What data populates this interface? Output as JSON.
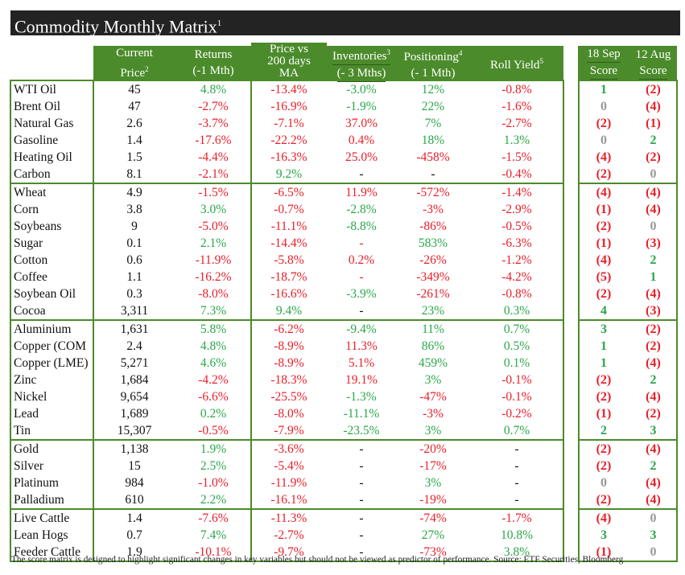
{
  "title": "Commodity Monthly Matrix",
  "title_sup": "1",
  "headers": {
    "price": [
      "Current",
      "Price",
      "2"
    ],
    "returns": [
      "Returns",
      "(-1 Mth)"
    ],
    "ma": [
      "Price vs",
      "200 days",
      "MA"
    ],
    "inv": [
      "Inventories",
      "3",
      "(- 3 Mths)"
    ],
    "pos": [
      "Positioning",
      "4",
      "(- 1 Mth)"
    ],
    "roll": [
      "Roll Yield",
      "5"
    ],
    "s18": [
      "18 Sep",
      "Score"
    ],
    "s12": [
      "12 Aug",
      "Score"
    ]
  },
  "colors": {
    "green": "#2aa84a",
    "red": "#e8202a",
    "header": "#4b8b2b",
    "title_bg": "#232323"
  },
  "groups": [
    {
      "name": "energy",
      "rows": [
        [
          "WTI Oil",
          "45",
          "4.8%|g",
          "-13.4%|r",
          "-3.0%|g",
          "12%|g",
          "-0.8%|r",
          "1|g",
          "(2)|r"
        ],
        [
          "Brent Oil",
          "47",
          "-2.7%|r",
          "-16.9%|r",
          "-1.9%|g",
          "22%|g",
          "-1.6%|r",
          "0|z",
          "(4)|r"
        ],
        [
          "Natural Gas",
          "2.6",
          "-3.7%|r",
          "-7.1%|r",
          "37.0%|r",
          "7%|g",
          "-2.7%|r",
          "(2)|r",
          "(1)|r"
        ],
        [
          "Gasoline",
          "1.4",
          "-17.6%|r",
          "-22.2%|r",
          "0.4%|r",
          "18%|g",
          "1.3%|g",
          "0|z",
          "2|g"
        ],
        [
          "Heating Oil",
          "1.5",
          "-4.4%|r",
          "-16.3%|r",
          "25.0%|r",
          "-458%|r",
          "-1.5%|r",
          "(4)|r",
          "(2)|r"
        ],
        [
          "Carbon",
          "8.1",
          "-2.1%|r",
          "9.2%|g",
          "-|k",
          "-|k",
          "-0.4%|r",
          "(2)|r",
          "0|z"
        ]
      ]
    },
    {
      "name": "agriculture",
      "rows": [
        [
          "Wheat",
          "4.9",
          "-1.5%|r",
          "-6.5%|r",
          "11.9%|r",
          "-572%|r",
          "-1.4%|r",
          "(4)|r",
          "(4)|r"
        ],
        [
          "Corn",
          "3.8",
          "3.0%|g",
          "-0.7%|r",
          "-2.8%|g",
          "-3%|r",
          "-2.9%|r",
          "(1)|r",
          "(4)|r"
        ],
        [
          "Soybeans",
          "9",
          "-5.0%|r",
          "-11.1%|r",
          "-8.8%|g",
          "-86%|r",
          "-0.5%|r",
          "(2)|r",
          "0|z"
        ],
        [
          "Sugar",
          "0.1",
          "2.1%|g",
          "-14.4%|r",
          "-|r",
          "583%|g",
          "-6.3%|r",
          "(1)|r",
          "(3)|r"
        ],
        [
          "Cotton",
          "0.6",
          "-11.9%|r",
          "-5.8%|r",
          "0.2%|r",
          "-26%|r",
          "-1.2%|r",
          "(4)|r",
          "2|g"
        ],
        [
          "Coffee",
          "1.1",
          "-16.2%|r",
          "-18.7%|r",
          "-|r",
          "-349%|r",
          "-4.2%|r",
          "(5)|r",
          "1|g"
        ],
        [
          "Soybean Oil",
          "0.3",
          "-8.0%|r",
          "-16.6%|r",
          "-3.9%|g",
          "-261%|r",
          "-0.8%|r",
          "(2)|r",
          "(4)|r"
        ],
        [
          "Cocoa",
          "3,311",
          "7.3%|g",
          "9.4%|g",
          "-|k",
          "23%|g",
          "0.3%|g",
          "4|g",
          "(3)|r"
        ]
      ]
    },
    {
      "name": "industrial-metals",
      "rows": [
        [
          "Aluminium",
          "1,631",
          "5.8%|g",
          "-6.2%|r",
          "-9.4%|g",
          "11%|g",
          "0.7%|g",
          "3|g",
          "(2)|r"
        ],
        [
          "Copper (COM",
          "2.4",
          "4.8%|g",
          "-8.9%|r",
          "11.3%|r",
          "86%|g",
          "0.5%|g",
          "1|g",
          "(2)|r"
        ],
        [
          "Copper (LME)",
          "5,271",
          "4.6%|g",
          "-8.9%|r",
          "5.1%|r",
          "459%|g",
          "0.1%|g",
          "1|g",
          "(4)|r"
        ],
        [
          "Zinc",
          "1,684",
          "-4.2%|r",
          "-18.3%|r",
          "19.1%|r",
          "3%|g",
          "-0.1%|r",
          "(2)|r",
          "2|g"
        ],
        [
          "Nickel",
          "9,654",
          "-6.6%|r",
          "-25.5%|r",
          "-1.3%|g",
          "-47%|r",
          "-0.1%|r",
          "(2)|r",
          "(4)|r"
        ],
        [
          "Lead",
          "1,689",
          "0.2%|g",
          "-8.0%|r",
          "-11.1%|g",
          "-3%|r",
          "-0.2%|r",
          "(1)|r",
          "(2)|r"
        ],
        [
          "Tin",
          "15,307",
          "-0.5%|r",
          "-7.9%|r",
          "-23.5%|g",
          "3%|g",
          "0.7%|g",
          "2|g",
          "3|g"
        ]
      ]
    },
    {
      "name": "precious-metals",
      "rows": [
        [
          "Gold",
          "1,138",
          "1.9%|g",
          "-3.6%|r",
          "-|k",
          "-20%|r",
          "-|k",
          "(2)|r",
          "(4)|r"
        ],
        [
          "Silver",
          "15",
          "2.5%|g",
          "-5.4%|r",
          "-|k",
          "-17%|r",
          "-|k",
          "(2)|r",
          "2|g"
        ],
        [
          "Platinum",
          "984",
          "-1.0%|r",
          "-11.9%|r",
          "-|k",
          "3%|g",
          "-|k",
          "0|z",
          "(4)|r"
        ],
        [
          "Palladium",
          "610",
          "2.2%|g",
          "-16.1%|r",
          "-|k",
          "-19%|r",
          "-|k",
          "(2)|r",
          "(4)|r"
        ]
      ]
    },
    {
      "name": "livestock",
      "rows": [
        [
          "Live Cattle",
          "1.4",
          "-7.6%|r",
          "-11.3%|r",
          "-|k",
          "-74%|r",
          "-1.7%|r",
          "(4)|r",
          "0|z"
        ],
        [
          "Lean Hogs",
          "0.7",
          "7.4%|g",
          "-2.7%|r",
          "-|k",
          "27%|g",
          "10.8%|g",
          "3|g",
          "3|g"
        ],
        [
          "Feeder Cattle",
          "1.9",
          "-10.1%|r",
          "-9.7%|r",
          "-|k",
          "-73%|r",
          "3.8%|g",
          "(1)|r",
          "0|z"
        ]
      ]
    }
  ],
  "footer": "The score matrix is designed to highlight significant changes in key variables but should not be viewed as predictor of performance. Source: ETF Securities, Bloomberg"
}
